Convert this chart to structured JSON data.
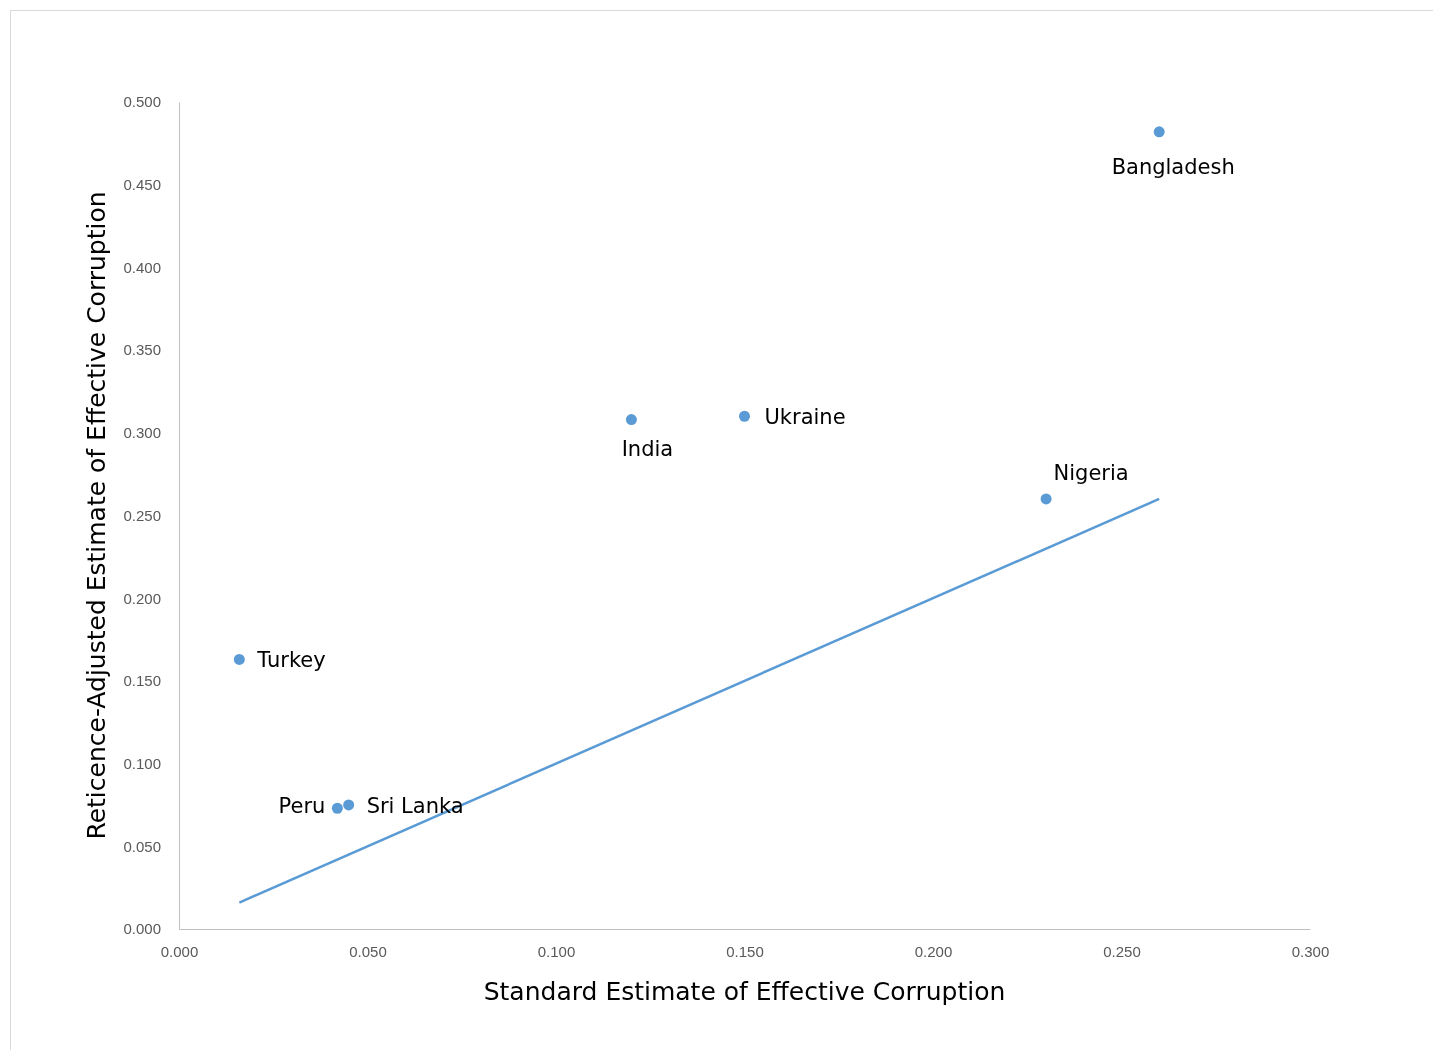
{
  "chart_data": {
    "type": "scatter",
    "xlabel": "Standard Estimate of Effective Corruption",
    "ylabel": "Reticence-Adjusted Estimate of Effective Corruption",
    "xlim": [
      0,
      0.3
    ],
    "ylim": [
      0,
      0.5
    ],
    "xticks": [
      {
        "value": 0,
        "label": "0.000"
      },
      {
        "value": 0.05,
        "label": "0.050"
      },
      {
        "value": 0.1,
        "label": "0.100"
      },
      {
        "value": 0.15,
        "label": "0.150"
      },
      {
        "value": 0.2,
        "label": "0.200"
      },
      {
        "value": 0.25,
        "label": "0.250"
      },
      {
        "value": 0.3,
        "label": "0.300"
      }
    ],
    "yticks": [
      {
        "value": 0,
        "label": "0.000"
      },
      {
        "value": 0.05,
        "label": "0.050"
      },
      {
        "value": 0.1,
        "label": "0.100"
      },
      {
        "value": 0.15,
        "label": "0.150"
      },
      {
        "value": 0.2,
        "label": "0.200"
      },
      {
        "value": 0.25,
        "label": "0.250"
      },
      {
        "value": 0.3,
        "label": "0.300"
      },
      {
        "value": 0.35,
        "label": "0.350"
      },
      {
        "value": 0.4,
        "label": "0.400"
      },
      {
        "value": 0.45,
        "label": "0.450"
      },
      {
        "value": 0.5,
        "label": "0.500"
      }
    ],
    "grid": false,
    "series": [
      {
        "marker": "circle",
        "color": "#5b9bd5",
        "x": [
          0.26,
          0.15,
          0.12,
          0.23,
          0.016,
          0.042,
          0.045
        ],
        "values": [
          0.482,
          0.31,
          0.308,
          0.26,
          0.163,
          0.073,
          0.075
        ]
      },
      {
        "type": "line",
        "marker": "none",
        "color": "#5b9bd5",
        "x": [
          0.016,
          0.26
        ],
        "values": [
          0.016,
          0.26
        ]
      }
    ],
    "annotations": [
      {
        "text": "Bangladesh",
        "x": 0.26,
        "y": 0.482
      },
      {
        "text": "Ukraine",
        "x": 0.15,
        "y": 0.31
      },
      {
        "text": "India",
        "x": 0.12,
        "y": 0.308
      },
      {
        "text": "Nigeria",
        "x": 0.23,
        "y": 0.26
      },
      {
        "text": "Turkey",
        "x": 0.016,
        "y": 0.163
      },
      {
        "text": "Peru",
        "x": 0.042,
        "y": 0.073
      },
      {
        "text": "Sri Lanka",
        "x": 0.045,
        "y": 0.075
      }
    ]
  }
}
